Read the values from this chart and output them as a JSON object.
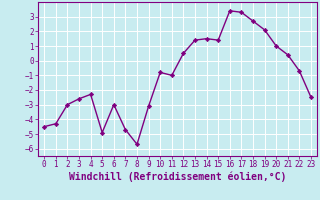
{
  "x": [
    0,
    1,
    2,
    3,
    4,
    5,
    6,
    7,
    8,
    9,
    10,
    11,
    12,
    13,
    14,
    15,
    16,
    17,
    18,
    19,
    20,
    21,
    22,
    23
  ],
  "y": [
    -4.5,
    -4.3,
    -3.0,
    -2.6,
    -2.3,
    -4.9,
    -3.0,
    -4.7,
    -5.7,
    -3.1,
    -0.8,
    -1.0,
    0.5,
    1.4,
    1.5,
    1.4,
    3.4,
    3.3,
    2.7,
    2.1,
    1.0,
    0.4,
    -0.7,
    -2.5
  ],
  "line_color": "#800080",
  "marker": "D",
  "marker_size": 2.2,
  "background_color": "#c8ecf0",
  "grid_color": "#ffffff",
  "xlabel": "Windchill (Refroidissement éolien,°C)",
  "xlabel_fontsize": 7,
  "ylim": [
    -6.5,
    4.0
  ],
  "xlim": [
    -0.5,
    23.5
  ],
  "yticks": [
    -6,
    -5,
    -4,
    -3,
    -2,
    -1,
    0,
    1,
    2,
    3
  ],
  "xticks": [
    0,
    1,
    2,
    3,
    4,
    5,
    6,
    7,
    8,
    9,
    10,
    11,
    12,
    13,
    14,
    15,
    16,
    17,
    18,
    19,
    20,
    21,
    22,
    23
  ],
  "tick_fontsize": 5.5,
  "line_width": 1.0,
  "border_color": "#800080"
}
